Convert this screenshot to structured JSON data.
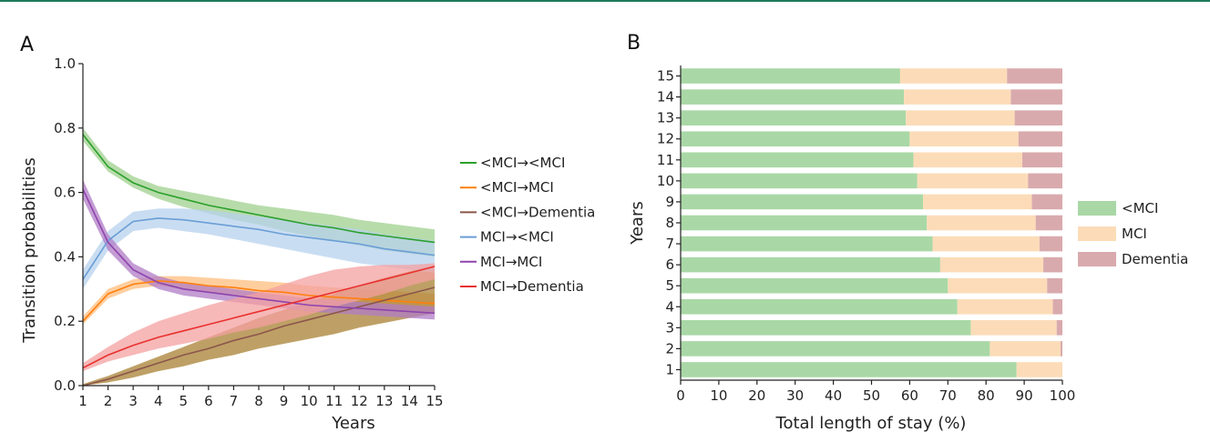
{
  "chart_data": [
    {
      "panel": "A",
      "type": "line",
      "xlabel": "Years",
      "ylabel": "Transition probabilities",
      "xlim": [
        1,
        15
      ],
      "ylim": [
        0,
        1
      ],
      "x_ticks": [
        "1",
        "2",
        "3",
        "4",
        "5",
        "6",
        "7",
        "8",
        "9",
        "10",
        "11",
        "12",
        "13",
        "14",
        "15"
      ],
      "y_ticks": [
        "0.0",
        "0.2",
        "0.4",
        "0.6",
        "0.8",
        "1.0"
      ],
      "legend_position": "right",
      "x": [
        1,
        2,
        3,
        4,
        5,
        6,
        7,
        8,
        9,
        10,
        11,
        12,
        13,
        14,
        15
      ],
      "series": [
        {
          "name": "<MCI→<MCI",
          "color": "#2ca02c",
          "band_color": "#9fd08e",
          "values": [
            0.78,
            0.68,
            0.63,
            0.6,
            0.58,
            0.56,
            0.545,
            0.53,
            0.515,
            0.5,
            0.49,
            0.475,
            0.465,
            0.455,
            0.445
          ],
          "lower": [
            0.76,
            0.665,
            0.615,
            0.58,
            0.555,
            0.535,
            0.515,
            0.5,
            0.48,
            0.465,
            0.45,
            0.435,
            0.42,
            0.41,
            0.4
          ],
          "upper": [
            0.8,
            0.7,
            0.65,
            0.62,
            0.605,
            0.59,
            0.575,
            0.56,
            0.55,
            0.54,
            0.53,
            0.515,
            0.505,
            0.495,
            0.485
          ]
        },
        {
          "name": "<MCI→MCI",
          "color": "#ff7f0e",
          "band_color": "#ffbe7d",
          "values": [
            0.2,
            0.285,
            0.315,
            0.325,
            0.32,
            0.31,
            0.305,
            0.295,
            0.29,
            0.28,
            0.275,
            0.27,
            0.265,
            0.26,
            0.255
          ],
          "lower": [
            0.19,
            0.27,
            0.3,
            0.31,
            0.3,
            0.29,
            0.28,
            0.27,
            0.26,
            0.255,
            0.245,
            0.24,
            0.235,
            0.23,
            0.225
          ],
          "upper": [
            0.215,
            0.3,
            0.33,
            0.34,
            0.34,
            0.335,
            0.33,
            0.325,
            0.32,
            0.31,
            0.305,
            0.3,
            0.295,
            0.29,
            0.285
          ]
        },
        {
          "name": "<MCI→Dementia",
          "color": "#8c564b",
          "band_color": "#a88033",
          "values": [
            0.0,
            0.02,
            0.045,
            0.07,
            0.095,
            0.115,
            0.14,
            0.16,
            0.185,
            0.205,
            0.225,
            0.245,
            0.265,
            0.285,
            0.305
          ],
          "lower": [
            0.0,
            0.01,
            0.025,
            0.045,
            0.06,
            0.08,
            0.095,
            0.115,
            0.13,
            0.145,
            0.16,
            0.18,
            0.195,
            0.21,
            0.225
          ],
          "upper": [
            0.005,
            0.03,
            0.06,
            0.09,
            0.12,
            0.15,
            0.18,
            0.21,
            0.235,
            0.26,
            0.285,
            0.31,
            0.335,
            0.355,
            0.375
          ]
        },
        {
          "name": "MCI→<MCI",
          "color": "#6a9ed6",
          "band_color": "#b7d1ee",
          "values": [
            0.33,
            0.45,
            0.51,
            0.52,
            0.515,
            0.505,
            0.495,
            0.485,
            0.47,
            0.46,
            0.45,
            0.44,
            0.425,
            0.415,
            0.405
          ],
          "lower": [
            0.3,
            0.42,
            0.48,
            0.49,
            0.48,
            0.47,
            0.455,
            0.44,
            0.425,
            0.41,
            0.395,
            0.38,
            0.37,
            0.36,
            0.35
          ],
          "upper": [
            0.36,
            0.48,
            0.54,
            0.55,
            0.55,
            0.545,
            0.535,
            0.525,
            0.515,
            0.505,
            0.495,
            0.485,
            0.47,
            0.46,
            0.45
          ]
        },
        {
          "name": "MCI→MCI",
          "color": "#8e44ad",
          "band_color": "#b07cc6",
          "values": [
            0.61,
            0.445,
            0.36,
            0.32,
            0.3,
            0.29,
            0.28,
            0.27,
            0.26,
            0.25,
            0.245,
            0.24,
            0.235,
            0.23,
            0.225
          ],
          "lower": [
            0.58,
            0.42,
            0.34,
            0.3,
            0.28,
            0.27,
            0.26,
            0.25,
            0.24,
            0.23,
            0.225,
            0.22,
            0.215,
            0.21,
            0.205
          ],
          "upper": [
            0.64,
            0.47,
            0.38,
            0.34,
            0.32,
            0.31,
            0.3,
            0.29,
            0.28,
            0.27,
            0.265,
            0.26,
            0.255,
            0.25,
            0.245
          ]
        },
        {
          "name": "MCI→Dementia",
          "color": "#e8312f",
          "band_color": "#f4a0a0",
          "values": [
            0.055,
            0.095,
            0.125,
            0.15,
            0.17,
            0.19,
            0.21,
            0.23,
            0.25,
            0.27,
            0.29,
            0.31,
            0.33,
            0.35,
            0.37
          ],
          "lower": [
            0.045,
            0.075,
            0.095,
            0.115,
            0.13,
            0.145,
            0.165,
            0.18,
            0.2,
            0.22,
            0.245,
            0.265,
            0.285,
            0.31,
            0.33
          ],
          "upper": [
            0.07,
            0.12,
            0.165,
            0.2,
            0.225,
            0.25,
            0.27,
            0.29,
            0.315,
            0.34,
            0.36,
            0.37,
            0.375,
            0.375,
            0.38
          ]
        }
      ]
    },
    {
      "panel": "B",
      "type": "bar",
      "orientation": "horizontal",
      "stacked": true,
      "xlabel": "Total length of stay (%)",
      "ylabel": "Years",
      "xlim": [
        0,
        100
      ],
      "x_ticks": [
        "0",
        "10",
        "20",
        "30",
        "40",
        "50",
        "60",
        "70",
        "80",
        "90",
        "100"
      ],
      "categories": [
        "1",
        "2",
        "3",
        "4",
        "5",
        "6",
        "7",
        "8",
        "9",
        "10",
        "11",
        "12",
        "13",
        "14",
        "15"
      ],
      "legend_position": "right",
      "series": [
        {
          "name": "<MCI",
          "color": "#a9d8a6",
          "values": [
            88,
            81,
            76,
            72.5,
            70,
            68,
            66,
            64.5,
            63.5,
            62,
            61,
            60,
            59,
            58.5,
            57.5
          ]
        },
        {
          "name": "MCI",
          "color": "#fcdcb8",
          "values": [
            12,
            18.5,
            22.5,
            25,
            26,
            27,
            28,
            28.5,
            28.5,
            29,
            28.5,
            28.5,
            28.5,
            28,
            28
          ]
        },
        {
          "name": "Dementia",
          "color": "#d9aaad",
          "values": [
            0,
            0.5,
            1.5,
            2.5,
            4,
            5,
            6,
            7,
            8,
            9,
            10.5,
            11.5,
            12.5,
            13.5,
            14.5
          ]
        }
      ]
    }
  ]
}
